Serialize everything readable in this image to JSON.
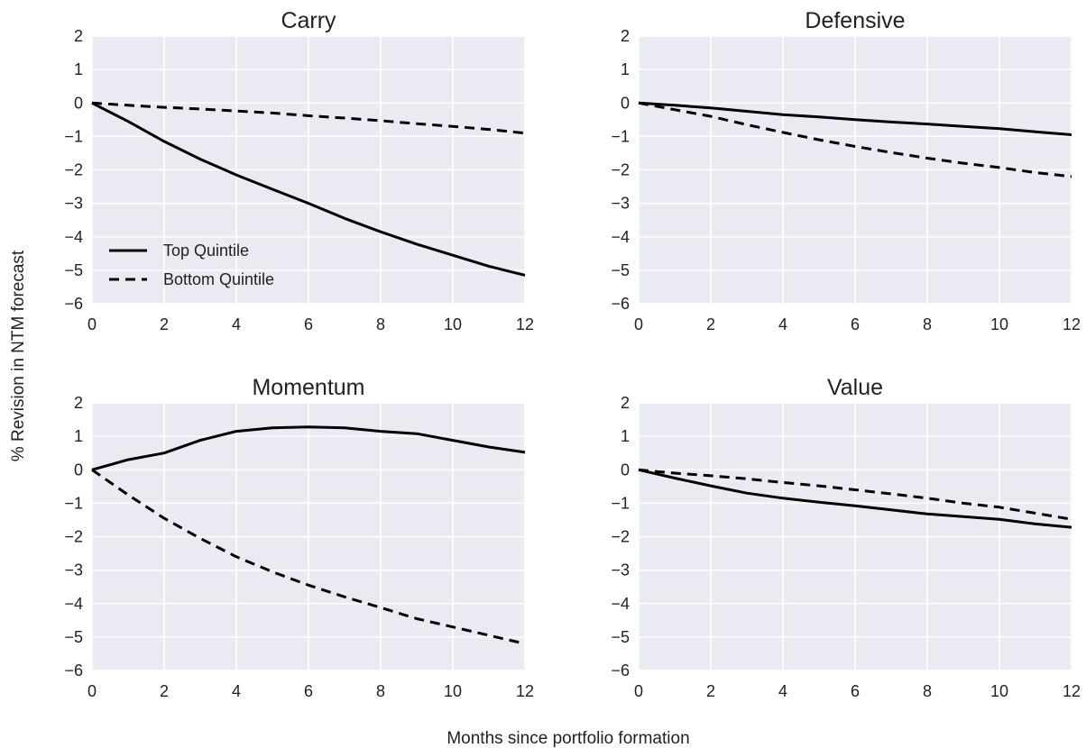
{
  "figure": {
    "ylabel": "% Revision in NTM forecast",
    "xlabel": "Months since portfolio formation",
    "legend": [
      "Top Quintile",
      "Bottom Quintile"
    ],
    "legend_location": "lower-left of Carry panel"
  },
  "colors": {
    "background": "#eaeaf2",
    "grid": "#ffffff",
    "line": "#000000"
  },
  "chart_data": [
    {
      "type": "line",
      "title": "Carry",
      "x": [
        0,
        1,
        2,
        3,
        4,
        5,
        6,
        7,
        8,
        9,
        10,
        11,
        12
      ],
      "xlim": [
        0,
        12
      ],
      "ylim": [
        -6,
        2
      ],
      "xticks": [
        0,
        2,
        4,
        6,
        8,
        10,
        12
      ],
      "yticks": [
        2,
        1,
        0,
        -1,
        -2,
        -3,
        -4,
        -5,
        -6
      ],
      "grid": true,
      "series": [
        {
          "name": "Top Quintile",
          "style": "solid",
          "values": [
            0,
            -0.55,
            -1.15,
            -1.68,
            -2.15,
            -2.58,
            -3.0,
            -3.45,
            -3.85,
            -4.22,
            -4.55,
            -4.88,
            -5.15
          ]
        },
        {
          "name": "Bottom Quintile",
          "style": "dashed",
          "values": [
            0,
            -0.07,
            -0.13,
            -0.18,
            -0.24,
            -0.3,
            -0.38,
            -0.45,
            -0.53,
            -0.62,
            -0.7,
            -0.79,
            -0.9
          ]
        }
      ]
    },
    {
      "type": "line",
      "title": "Defensive",
      "x": [
        0,
        1,
        2,
        3,
        4,
        5,
        6,
        7,
        8,
        9,
        10,
        11,
        12
      ],
      "xlim": [
        0,
        12
      ],
      "ylim": [
        -6,
        2
      ],
      "xticks": [
        0,
        2,
        4,
        6,
        8,
        10,
        12
      ],
      "yticks": [
        2,
        1,
        0,
        -1,
        -2,
        -3,
        -4,
        -5,
        -6
      ],
      "grid": true,
      "series": [
        {
          "name": "Top Quintile",
          "style": "solid",
          "values": [
            0,
            -0.07,
            -0.15,
            -0.25,
            -0.35,
            -0.42,
            -0.5,
            -0.57,
            -0.63,
            -0.7,
            -0.77,
            -0.86,
            -0.95
          ]
        },
        {
          "name": "Bottom Quintile",
          "style": "dashed",
          "values": [
            0,
            -0.2,
            -0.4,
            -0.65,
            -0.88,
            -1.1,
            -1.3,
            -1.48,
            -1.65,
            -1.8,
            -1.93,
            -2.08,
            -2.2
          ]
        }
      ]
    },
    {
      "type": "line",
      "title": "Momentum",
      "x": [
        0,
        1,
        2,
        3,
        4,
        5,
        6,
        7,
        8,
        9,
        10,
        11,
        12
      ],
      "xlim": [
        0,
        12
      ],
      "ylim": [
        -6,
        2
      ],
      "xticks": [
        0,
        2,
        4,
        6,
        8,
        10,
        12
      ],
      "yticks": [
        2,
        1,
        0,
        -1,
        -2,
        -3,
        -4,
        -5,
        -6
      ],
      "grid": true,
      "series": [
        {
          "name": "Top Quintile",
          "style": "solid",
          "values": [
            0,
            0.3,
            0.5,
            0.88,
            1.15,
            1.25,
            1.28,
            1.25,
            1.15,
            1.08,
            0.88,
            0.68,
            0.52
          ]
        },
        {
          "name": "Bottom Quintile",
          "style": "dashed",
          "values": [
            0,
            -0.75,
            -1.45,
            -2.05,
            -2.6,
            -3.05,
            -3.45,
            -3.8,
            -4.12,
            -4.45,
            -4.7,
            -4.95,
            -5.2
          ]
        }
      ]
    },
    {
      "type": "line",
      "title": "Value",
      "x": [
        0,
        1,
        2,
        3,
        4,
        5,
        6,
        7,
        8,
        9,
        10,
        11,
        12
      ],
      "xlim": [
        0,
        12
      ],
      "ylim": [
        -6,
        2
      ],
      "xticks": [
        0,
        2,
        4,
        6,
        8,
        10,
        12
      ],
      "yticks": [
        2,
        1,
        0,
        -1,
        -2,
        -3,
        -4,
        -5,
        -6
      ],
      "grid": true,
      "series": [
        {
          "name": "Top Quintile",
          "style": "solid",
          "values": [
            0,
            -0.25,
            -0.48,
            -0.7,
            -0.85,
            -0.97,
            -1.08,
            -1.2,
            -1.32,
            -1.4,
            -1.48,
            -1.62,
            -1.72
          ]
        },
        {
          "name": "Bottom Quintile",
          "style": "dashed",
          "values": [
            0,
            -0.1,
            -0.18,
            -0.27,
            -0.38,
            -0.48,
            -0.6,
            -0.72,
            -0.85,
            -1.0,
            -1.12,
            -1.3,
            -1.48
          ]
        }
      ]
    }
  ]
}
